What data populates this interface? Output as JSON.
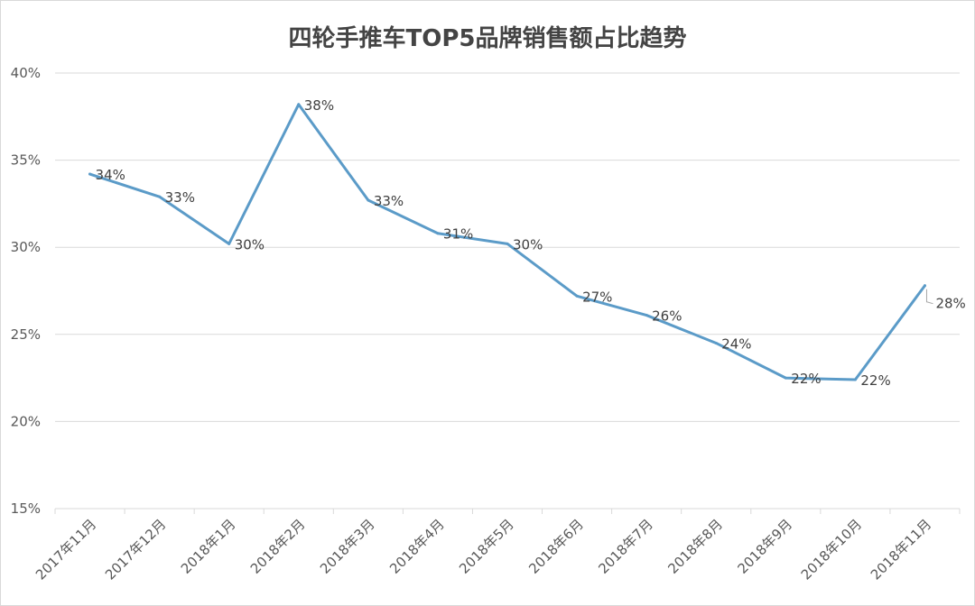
{
  "chart_data": {
    "type": "line",
    "title": "四轮手推车TOP5品牌销售额占比趋势",
    "xlabel": "",
    "ylabel": "",
    "categories": [
      "2017年11月",
      "2017年12月",
      "2018年1月",
      "2018年2月",
      "2018年3月",
      "2018年4月",
      "2018年5月",
      "2018年6月",
      "2018年7月",
      "2018年8月",
      "2018年9月",
      "2018年10月",
      "2018年11月"
    ],
    "series": [
      {
        "values": [
          34.2,
          32.9,
          30.2,
          38.2,
          32.7,
          30.8,
          30.2,
          27.2,
          26.1,
          24.5,
          22.5,
          22.4,
          27.8
        ],
        "labels": [
          "34%",
          "33%",
          "30%",
          "38%",
          "33%",
          "31%",
          "30%",
          "27%",
          "26%",
          "24%",
          "22%",
          "22%",
          "28%"
        ]
      }
    ],
    "ylim": [
      15,
      40
    ],
    "yticks": [
      15,
      20,
      25,
      30,
      35,
      40
    ],
    "ytick_labels": [
      "15%",
      "20%",
      "25%",
      "30%",
      "35%",
      "40%"
    ],
    "grid": true,
    "legend": "none",
    "colors": {
      "line": "#5b9bc8",
      "grid": "#d9d9d9",
      "text": "#595959"
    }
  }
}
